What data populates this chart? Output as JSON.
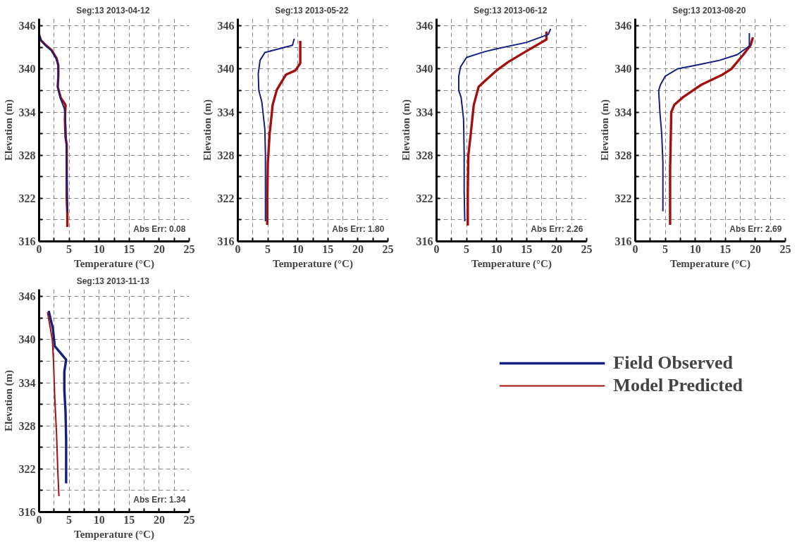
{
  "chart_data": [
    {
      "type": "line",
      "title": "Seg:13  2013-04-12",
      "xlabel": "Temperature (°C)",
      "ylabel": "Elevation (m)",
      "xlim": [
        0,
        25
      ],
      "ylim": [
        316,
        347
      ],
      "xticks": [
        0,
        {
          "value": 2.5,
          "label": null
        },
        5,
        {
          "value": 7.5,
          "label": null
        },
        10,
        {
          "value": 12.5,
          "label": null
        },
        15,
        {
          "value": 17.5,
          "label": null
        },
        20,
        {
          "value": 22.5,
          "label": null
        },
        25
      ],
      "yticks": [
        316,
        {
          "value": 319,
          "label": null
        },
        322,
        {
          "value": 325,
          "label": null
        },
        328,
        {
          "value": 331,
          "label": null
        },
        334,
        {
          "value": 337,
          "label": null
        },
        340,
        {
          "value": 343,
          "label": null
        },
        346
      ],
      "grid": true,
      "line_style": "solid",
      "annotations": [
        "Abs Err: 0.08"
      ],
      "series": [
        {
          "color": "#a30f0f",
          "x": [
            0,
            0.3,
            1,
            2.1,
            2.9,
            3.2,
            3.2,
            3.1,
            3.6,
            4.4,
            4.3,
            4.4,
            4.6,
            4.6,
            4.6,
            4.7,
            4.7
          ],
          "values": [
            344.8,
            344,
            343.4,
            342.6,
            341.5,
            340.5,
            339,
            337.5,
            336,
            335,
            333,
            330.5,
            329.5,
            325,
            322,
            320,
            318
          ]
        },
        {
          "color": "#14207f",
          "x": [
            0,
            0.3,
            1,
            2,
            2.8,
            3.2,
            3.2,
            3.1,
            3.5,
            4.2,
            4.4,
            4.5,
            4.6,
            4.7,
            4.7
          ],
          "values": [
            344.8,
            344,
            343.3,
            342.6,
            341.5,
            340.5,
            339,
            337.5,
            336,
            334.5,
            333,
            330,
            326,
            322,
            320
          ]
        }
      ]
    },
    {
      "type": "line",
      "title": "Seg:13  2013-05-22",
      "xlabel": "Temperature (°C)",
      "ylabel": "Elevation (m)",
      "xlim": [
        0,
        25
      ],
      "ylim": [
        316,
        347
      ],
      "xticks": [
        0,
        {
          "value": 2.5,
          "label": null
        },
        5,
        {
          "value": 7.5,
          "label": null
        },
        10,
        {
          "value": 12.5,
          "label": null
        },
        15,
        {
          "value": 17.5,
          "label": null
        },
        20,
        {
          "value": 22.5,
          "label": null
        },
        25
      ],
      "yticks": [
        316,
        {
          "value": 319,
          "label": null
        },
        322,
        {
          "value": 325,
          "label": null
        },
        328,
        {
          "value": 331,
          "label": null
        },
        334,
        {
          "value": 337,
          "label": null
        },
        340,
        {
          "value": 343,
          "label": null
        },
        346
      ],
      "grid": true,
      "line_style": "solid",
      "annotations": [
        "Abs Err: 1.80"
      ],
      "series": [
        {
          "color": "#a30f0f",
          "x": [
            10.4,
            10.4,
            9.6,
            8.0,
            6.5,
            5.8,
            5.3,
            5.0,
            4.9,
            4.9
          ],
          "values": [
            343.9,
            340.8,
            339.8,
            339.2,
            337.1,
            335,
            331,
            327,
            322,
            318.3
          ]
        },
        {
          "color": "#14207f",
          "x": [
            9.4,
            9.1,
            4.5,
            3.7,
            3.4,
            3.5,
            4.0,
            4.5,
            4.6,
            4.6,
            4.6
          ],
          "values": [
            344.2,
            343.3,
            342.3,
            341.2,
            339.3,
            337,
            335.4,
            331.6,
            328,
            324,
            318.8
          ]
        }
      ]
    },
    {
      "type": "line",
      "title": "Seg:13  2013-06-12",
      "xlabel": "Temperature (°C)",
      "ylabel": "Elevation (m)",
      "xlim": [
        0,
        25
      ],
      "ylim": [
        316,
        347
      ],
      "xticks": [
        0,
        {
          "value": 2.5,
          "label": null
        },
        5,
        {
          "value": 7.5,
          "label": null
        },
        10,
        {
          "value": 12.5,
          "label": null
        },
        15,
        {
          "value": 17.5,
          "label": null
        },
        20,
        {
          "value": 22.5,
          "label": null
        },
        25
      ],
      "yticks": [
        316,
        {
          "value": 319,
          "label": null
        },
        322,
        {
          "value": 325,
          "label": null
        },
        328,
        {
          "value": 331,
          "label": null
        },
        334,
        {
          "value": 337,
          "label": null
        },
        340,
        {
          "value": 343,
          "label": null
        },
        346
      ],
      "grid": true,
      "line_style": "solid",
      "annotations": [
        "Abs Err: 2.26"
      ],
      "series": [
        {
          "color": "#a30f0f",
          "x": [
            18.3,
            18.3,
            15,
            12,
            10,
            8,
            7,
            6.2,
            5.7,
            5.3,
            5.2,
            5.2
          ],
          "values": [
            345.2,
            344.1,
            342.5,
            341,
            339.8,
            338.3,
            337.5,
            335,
            331,
            328,
            323,
            318.2
          ]
        },
        {
          "color": "#14207f",
          "x": [
            19,
            18.6,
            15,
            10,
            8,
            5,
            4,
            3.7,
            3.7,
            4.1,
            4.5,
            4.6,
            4.6,
            4.7
          ],
          "values": [
            345.6,
            344.8,
            343.7,
            342.8,
            342.4,
            341.6,
            340.3,
            339,
            337,
            336,
            333,
            328,
            323,
            318.8
          ]
        }
      ]
    },
    {
      "type": "line",
      "title": "Seg:13  2013-08-20",
      "xlabel": "Temperature (°C)",
      "ylabel": "Elevation (m)",
      "xlim": [
        0,
        25
      ],
      "ylim": [
        316,
        347
      ],
      "xticks": [
        0,
        {
          "value": 2.5,
          "label": null
        },
        5,
        {
          "value": 7.5,
          "label": null
        },
        10,
        {
          "value": 12.5,
          "label": null
        },
        15,
        {
          "value": 17.5,
          "label": null
        },
        20,
        {
          "value": 22.5,
          "label": null
        },
        25
      ],
      "yticks": [
        316,
        {
          "value": 319,
          "label": null
        },
        322,
        {
          "value": 325,
          "label": null
        },
        328,
        {
          "value": 331,
          "label": null
        },
        334,
        {
          "value": 337,
          "label": null
        },
        340,
        {
          "value": 343,
          "label": null
        },
        346
      ],
      "grid": true,
      "line_style": "solid",
      "annotations": [
        "Abs Err: 2.69"
      ],
      "series": [
        {
          "color": "#a30f0f",
          "x": [
            19.6,
            19.2,
            18,
            16,
            14.5,
            11,
            8,
            6.5,
            6,
            5.9,
            5.8,
            5.8
          ],
          "values": [
            344.4,
            343.3,
            342,
            340,
            339.2,
            337.8,
            336.1,
            335,
            334,
            330,
            326,
            318.3
          ]
        },
        {
          "color": "#14207f",
          "x": [
            19,
            19,
            17,
            14,
            10,
            7,
            5,
            4.2,
            3.9,
            4.1,
            4.4,
            4.6,
            4.6
          ],
          "values": [
            345,
            343.2,
            342,
            341.2,
            340.5,
            340,
            339,
            337.8,
            337,
            334,
            331,
            327,
            320.2
          ]
        }
      ]
    },
    {
      "type": "line",
      "title": "Seg:13  2013-11-13",
      "xlabel": "Temperature (°C)",
      "ylabel": "Elevation (m)",
      "xlim": [
        0,
        25
      ],
      "ylim": [
        316,
        347
      ],
      "xticks": [
        0,
        {
          "value": 2.5,
          "label": null
        },
        5,
        {
          "value": 7.5,
          "label": null
        },
        10,
        {
          "value": 12.5,
          "label": null
        },
        15,
        {
          "value": 17.5,
          "label": null
        },
        20,
        {
          "value": 22.5,
          "label": null
        },
        25
      ],
      "yticks": [
        316,
        {
          "value": 319,
          "label": null
        },
        322,
        {
          "value": 325,
          "label": null
        },
        328,
        {
          "value": 331,
          "label": null
        },
        334,
        {
          "value": 337,
          "label": null
        },
        340,
        {
          "value": 343,
          "label": null
        },
        346
      ],
      "grid": true,
      "line_style": "solid",
      "legend": "right",
      "annotations": [
        "Abs Err: 1.34"
      ],
      "series": [
        {
          "name": "Field Observed",
          "color": "#14207f",
          "x": [
            1.6,
            2.3,
            2.6,
            3.3,
            4.5,
            4.2,
            4.2,
            4.4,
            4.5,
            4.5
          ],
          "values": [
            344,
            341.5,
            339.1,
            338.4,
            337.2,
            335.5,
            333,
            330,
            326,
            320
          ]
        },
        {
          "name": "Model Predicted",
          "color": "#a30f0f",
          "x": [
            1.4,
            2.2,
            2.4,
            2.6,
            2.9,
            3.1,
            3.3
          ],
          "values": [
            343.8,
            340,
            337,
            332,
            327,
            322,
            318.2
          ]
        }
      ]
    }
  ]
}
